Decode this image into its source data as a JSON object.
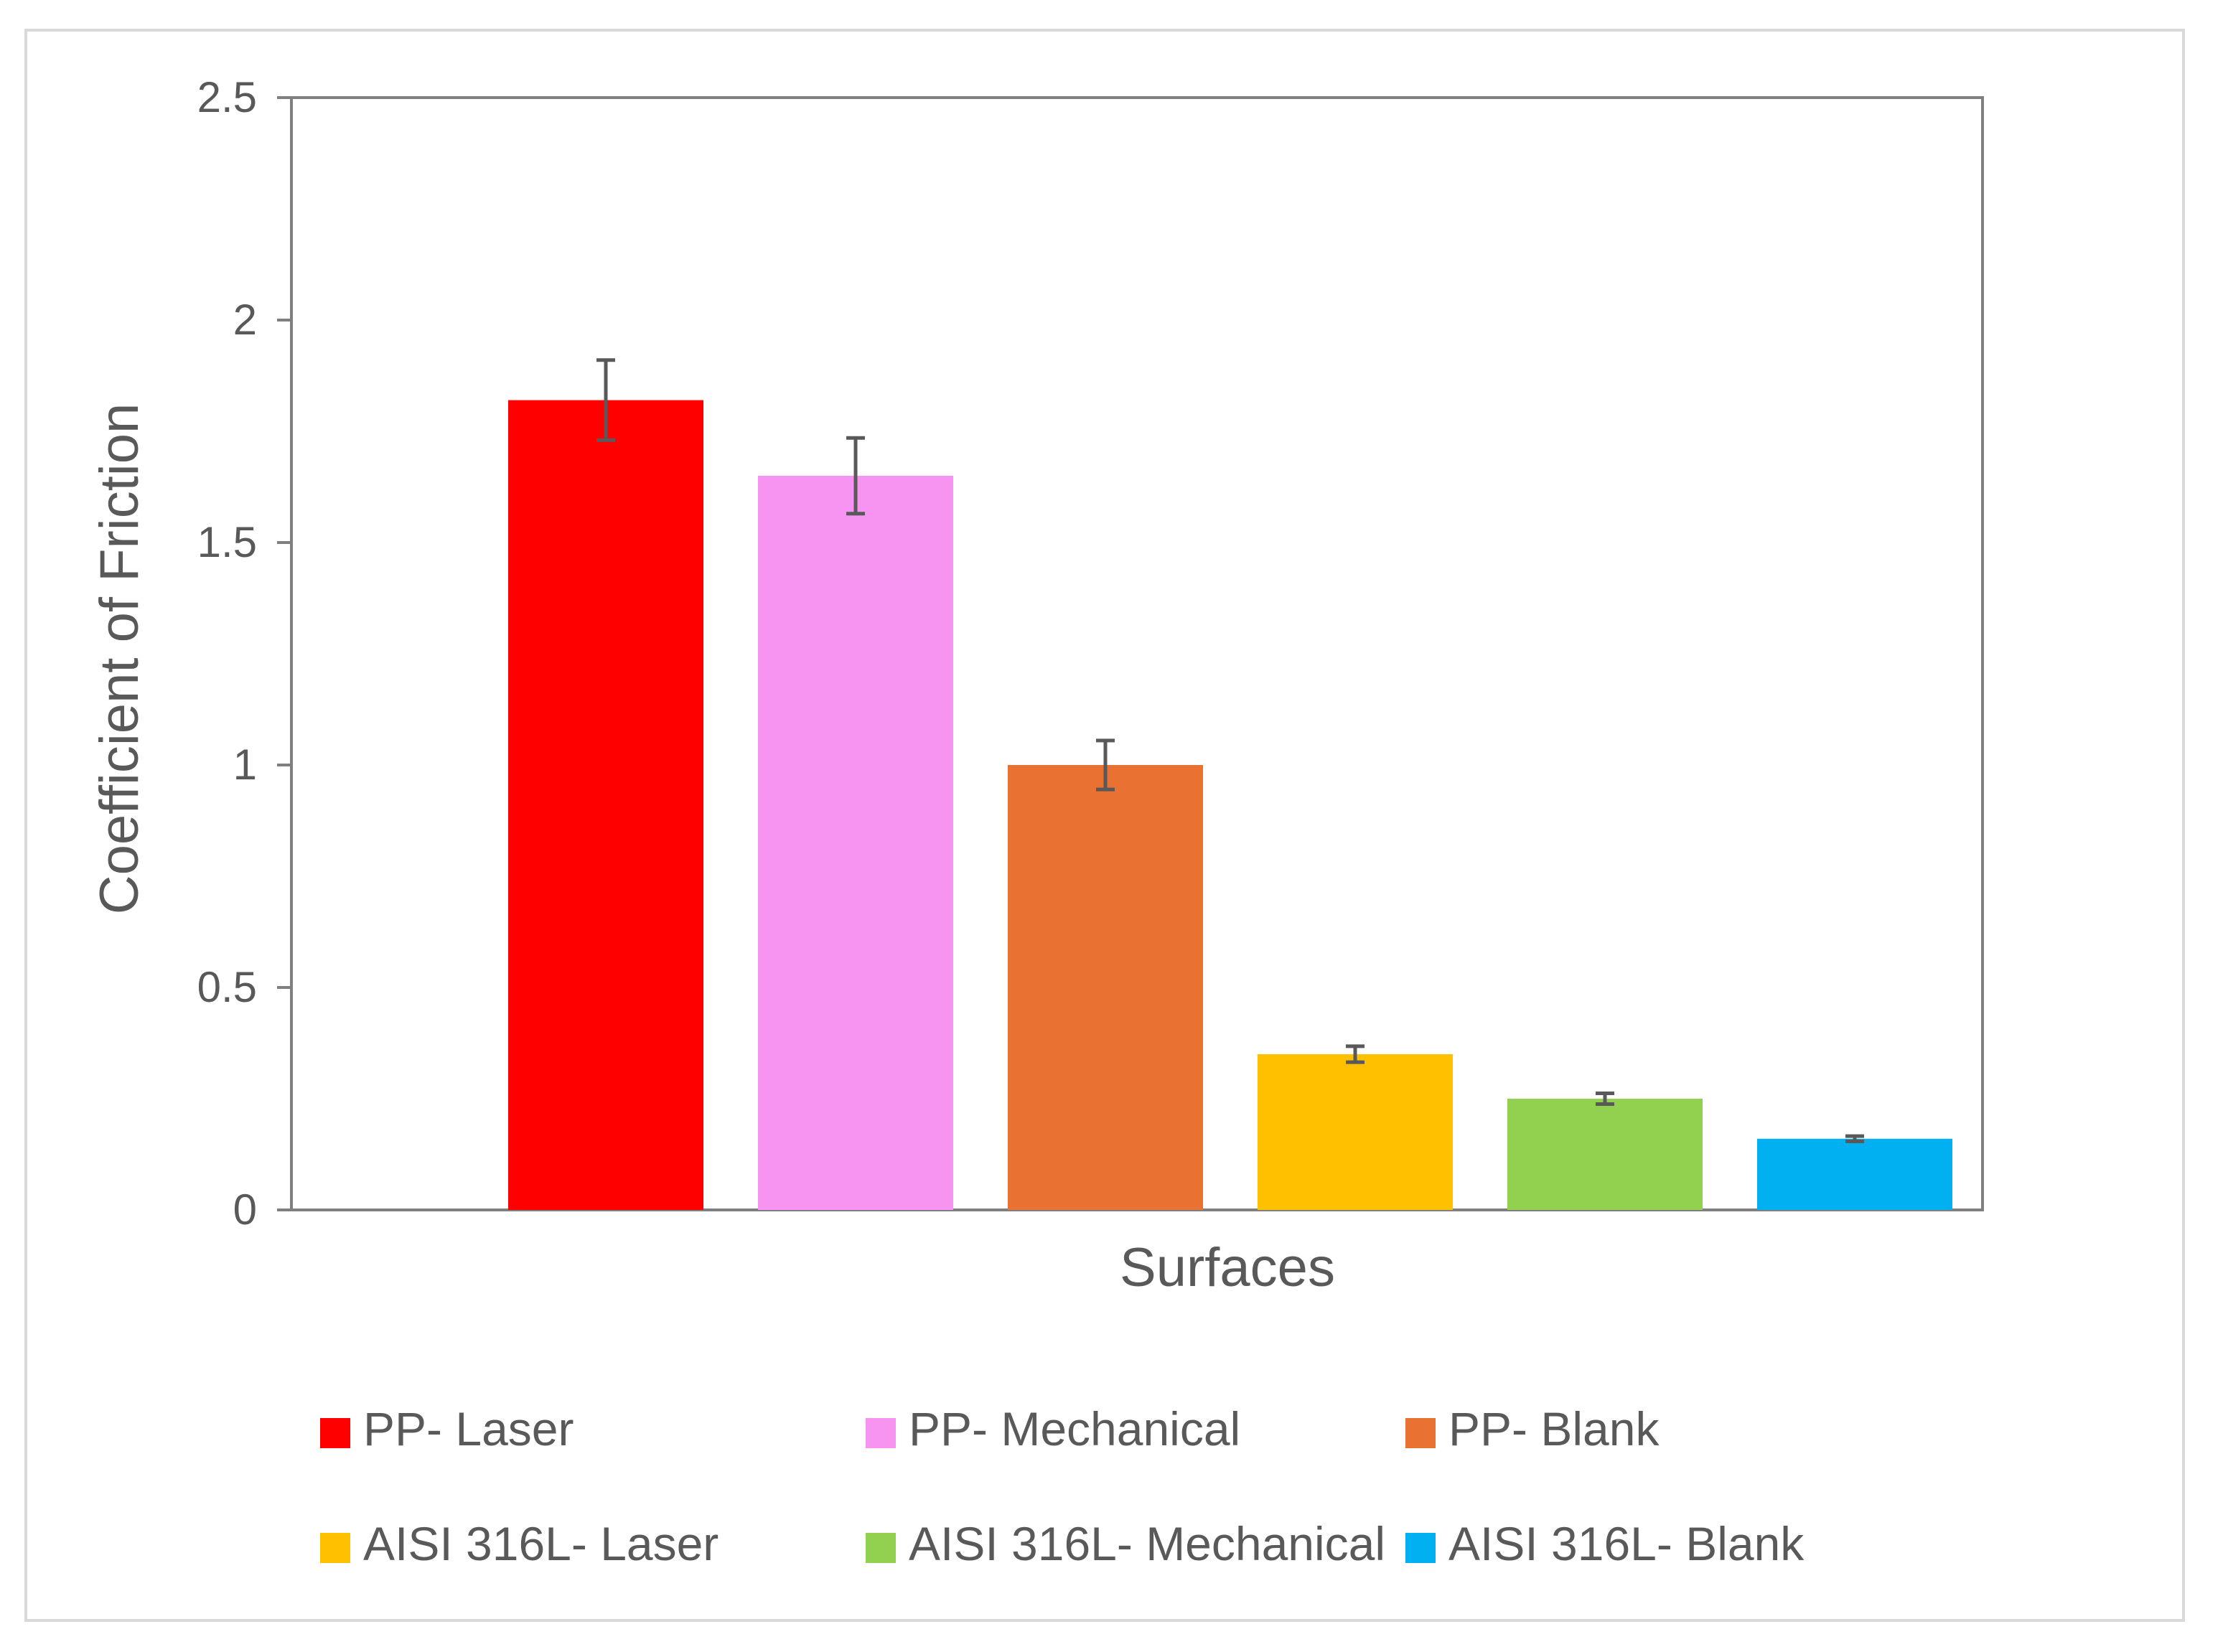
{
  "chart_data": {
    "type": "bar",
    "title": "",
    "xlabel": "Surfaces",
    "ylabel": "Coefficient of Friction",
    "ylim": [
      0,
      2.5
    ],
    "yticks": [
      "0",
      "0.5",
      "1",
      "1.5",
      "2",
      "2.5"
    ],
    "grid": false,
    "legend_position": "bottom",
    "series": [
      {
        "name": "PP- Laser",
        "value": 1.82,
        "error": 0.09,
        "color": "#ff0000"
      },
      {
        "name": "PP- Mechanical",
        "value": 1.65,
        "error": 0.085,
        "color": "#f794f2"
      },
      {
        "name": "PP- Blank",
        "value": 1.0,
        "error": 0.055,
        "color": "#e97132"
      },
      {
        "name": "AISI 316L- Laser",
        "value": 0.35,
        "error": 0.018,
        "color": "#ffc000"
      },
      {
        "name": "AISI 316L- Mechanical",
        "value": 0.25,
        "error": 0.012,
        "color": "#92d050"
      },
      {
        "name": "AISI 316L- Blank",
        "value": 0.16,
        "error": 0.006,
        "color": "#00b0f0"
      }
    ]
  }
}
